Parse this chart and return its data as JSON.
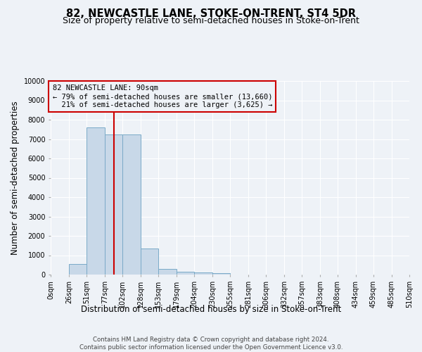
{
  "title": "82, NEWCASTLE LANE, STOKE-ON-TRENT, ST4 5DR",
  "subtitle": "Size of property relative to semi-detached houses in Stoke-on-Trent",
  "xlabel": "Distribution of semi-detached houses by size in Stoke-on-Trent",
  "ylabel": "Number of semi-detached properties",
  "footnote": "Contains HM Land Registry data © Crown copyright and database right 2024.\nContains public sector information licensed under the Open Government Licence v3.0.",
  "bin_labels": [
    "0sqm",
    "26sqm",
    "51sqm",
    "77sqm",
    "102sqm",
    "128sqm",
    "153sqm",
    "179sqm",
    "204sqm",
    "230sqm",
    "255sqm",
    "281sqm",
    "306sqm",
    "332sqm",
    "357sqm",
    "383sqm",
    "408sqm",
    "434sqm",
    "459sqm",
    "485sqm",
    "510sqm"
  ],
  "bar_values": [
    0,
    550,
    7600,
    7250,
    7250,
    1350,
    300,
    150,
    100,
    80,
    0,
    0,
    0,
    0,
    0,
    0,
    0,
    0,
    0,
    0
  ],
  "bar_color": "#c8d8e8",
  "bar_edgecolor": "#7aaac8",
  "property_size": 90,
  "property_label": "82 NEWCASTLE LANE: 90sqm",
  "pct_smaller": 79,
  "pct_larger": 21,
  "n_smaller": "13,660",
  "n_larger": "3,625",
  "vline_color": "#cc0000",
  "annotation_box_edgecolor": "#cc0000",
  "ylim": [
    0,
    10000
  ],
  "yticks": [
    0,
    1000,
    2000,
    3000,
    4000,
    5000,
    6000,
    7000,
    8000,
    9000,
    10000
  ],
  "bin_edges": [
    0,
    26,
    51,
    77,
    102,
    128,
    153,
    179,
    204,
    230,
    255,
    281,
    306,
    332,
    357,
    383,
    408,
    434,
    459,
    485,
    510
  ],
  "background_color": "#eef2f7",
  "grid_color": "#ffffff",
  "title_fontsize": 10.5,
  "subtitle_fontsize": 9,
  "axis_label_fontsize": 8.5,
  "tick_fontsize": 7,
  "annotation_fontsize": 7.5,
  "footnote_fontsize": 6.2
}
